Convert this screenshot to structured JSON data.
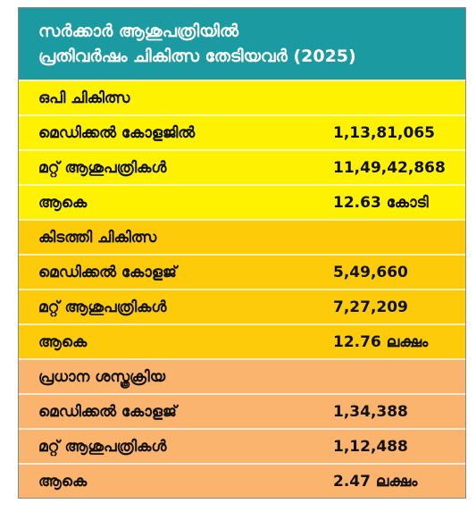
{
  "header": {
    "title": [
      "സർക്കാർ ആശുപത്രിയിൽ",
      "പ്രതിവർഷം ചികിത്സ തേടിയവർ (2025)"
    ]
  },
  "sections": [
    {
      "heading": "ഒപി ചികിത്സ",
      "rows": [
        [
          "മെഡിക്കൽ കോളജിൽ",
          "1,13,81,065"
        ],
        [
          "മറ്റ് ആശുപത്രികൾ",
          "11,49,42,868"
        ],
        [
          "ആകെ",
          "12.63 കോടി"
        ]
      ]
    },
    {
      "heading": "കിടത്തി ചികിത്സ",
      "rows": [
        [
          "മെഡിക്കൽ കോളജ്",
          "5,49,660"
        ],
        [
          "മറ്റ് ആശുപത്രികൾ",
          "7,27,209"
        ],
        [
          "ആകെ",
          "12.76 ലക്ഷം"
        ]
      ]
    },
    {
      "heading": "പ്രധാന ശസ്ത്രക്രിയ",
      "rows": [
        [
          "മെഡിക്കൽ കോളജ്",
          "1,34,388"
        ],
        [
          "മറ്റ് ആശുപത്രികൾ",
          "1,12,488"
        ],
        [
          "ആകെ",
          "2.47 ലക്ഷം"
        ]
      ]
    }
  ]
}
